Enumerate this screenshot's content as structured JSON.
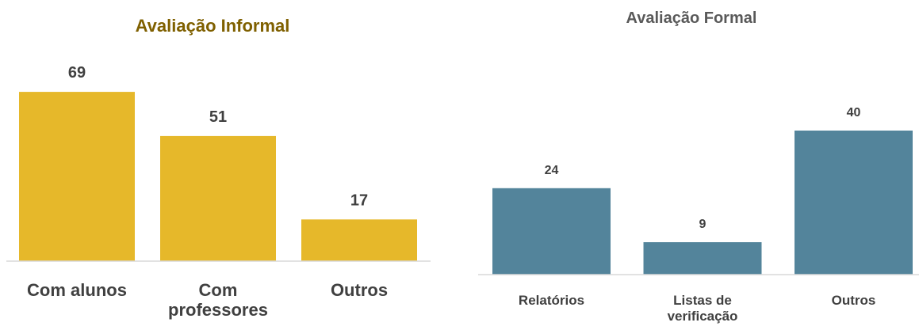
{
  "chart_data": [
    {
      "type": "bar",
      "title": "Avaliação Informal",
      "title_color": "#7f6000",
      "categories": [
        "Com alunos",
        "Com professores",
        "Outros"
      ],
      "values": [
        69,
        51,
        17
      ],
      "color": "#e6b82a"
    },
    {
      "type": "bar",
      "title": "Avaliação Formal",
      "title_color": "#595959",
      "categories": [
        "Relatórios",
        "Listas de verificação",
        "Outros"
      ],
      "values": [
        24,
        9,
        40
      ],
      "color": "#53849b"
    }
  ]
}
